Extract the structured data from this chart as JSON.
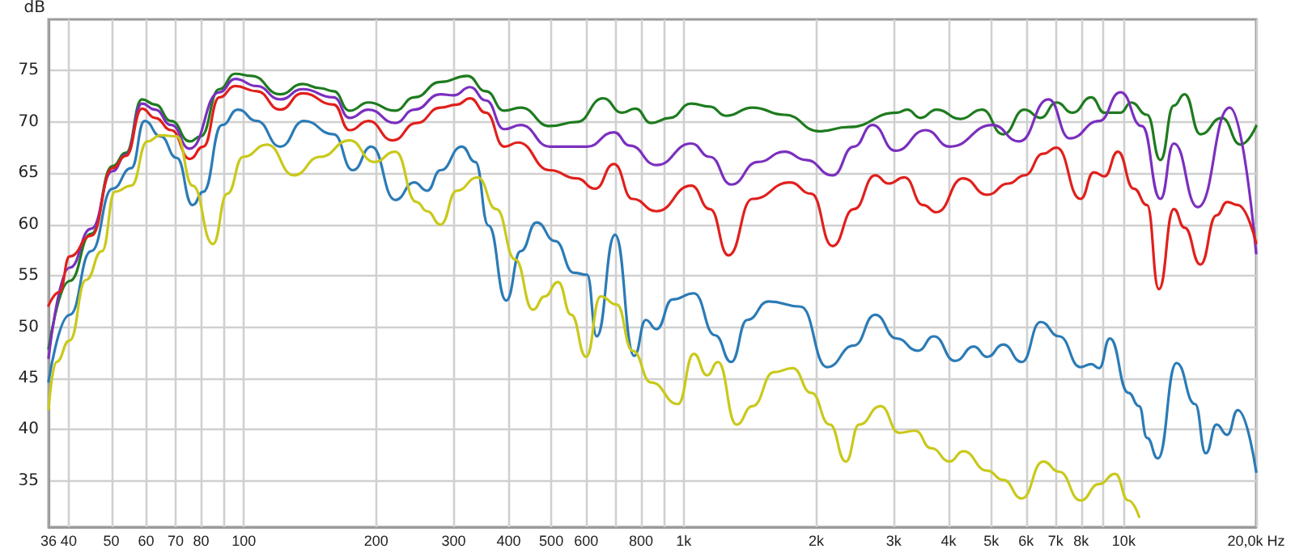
{
  "chart_data": {
    "type": "line",
    "ylabel": "dB",
    "log": "x",
    "grid": true,
    "marker": "none",
    "line_style": "solid",
    "xlim": [
      36,
      20000
    ],
    "ylim": [
      30.5,
      80
    ],
    "xticks": [
      36,
      40,
      50,
      60,
      70,
      80,
      {
        "value": 90,
        "label": null
      },
      100,
      200,
      300,
      400,
      500,
      600,
      {
        "value": 700,
        "label": null
      },
      800,
      {
        "value": 900,
        "label": null
      },
      {
        "value": 1000,
        "label": "1k"
      },
      {
        "value": 2000,
        "label": "2k"
      },
      {
        "value": 3000,
        "label": "3k"
      },
      {
        "value": 4000,
        "label": "4k"
      },
      {
        "value": 5000,
        "label": "5k"
      },
      {
        "value": 6000,
        "label": "6k"
      },
      {
        "value": 7000,
        "label": "7k"
      },
      {
        "value": 8000,
        "label": "8k"
      },
      {
        "value": 9000,
        "label": null
      },
      {
        "value": 10000,
        "label": "10k"
      },
      {
        "value": 20000,
        "label": "20,0k Hz"
      }
    ],
    "yticks": [
      35,
      40,
      45,
      50,
      55,
      60,
      65,
      70,
      75
    ],
    "series": [
      {
        "color": "#1e7b1e",
        "x": [
          36,
          40.2,
          45,
          50.3,
          54,
          58.7,
          62.9,
          68.4,
          75.4,
          79.8,
          88,
          95.6,
          104,
          121,
          136,
          149,
          160,
          174,
          192,
          221,
          244,
          280,
          322,
          355,
          391,
          426,
          496,
          571,
          656,
          724,
          776,
          844,
          930,
          1040,
          1147,
          1247,
          1433,
          1695,
          2032,
          2368,
          3046,
          3220,
          3453,
          3754,
          4256,
          4761,
          5322,
          5951,
          6471,
          7037,
          7648,
          8436,
          9045,
          9834,
          10400,
          11300,
          12120,
          13000,
          13750,
          14940,
          16710,
          18430,
          20000
        ],
        "values": [
          47.9,
          54.5,
          59.1,
          65.7,
          67.0,
          72.2,
          71.7,
          70.1,
          68.1,
          68.6,
          73.2,
          74.7,
          74.5,
          72.7,
          73.7,
          73.3,
          73.0,
          71.1,
          71.9,
          71.1,
          72.4,
          73.9,
          74.5,
          73.0,
          71.1,
          71.4,
          69.6,
          70.0,
          72.3,
          70.9,
          71.3,
          69.9,
          70.4,
          71.8,
          71.5,
          70.6,
          71.4,
          70.7,
          69.1,
          69.5,
          70.9,
          71.2,
          70.4,
          71.2,
          70.3,
          71.2,
          68.8,
          71.2,
          70.4,
          71.9,
          70.9,
          72.4,
          70.9,
          70.9,
          71.9,
          70.7,
          66.3,
          71.6,
          72.7,
          68.8,
          70.4,
          67.8,
          69.6
        ]
      },
      {
        "color": "#7b2fbe",
        "x": [
          36,
          40.2,
          45,
          50.3,
          54,
          58.7,
          62.9,
          68.4,
          75.4,
          88,
          95.6,
          107,
          121,
          136,
          160,
          174,
          192,
          221,
          244,
          280,
          300,
          327,
          355,
          391,
          426,
          496,
          603,
          694,
          754,
          867,
          1040,
          1147,
          1282,
          1474,
          1695,
          1895,
          2179,
          2436,
          2686,
          3029,
          3550,
          4025,
          5033,
          5786,
          6747,
          7542,
          8794,
          9834,
          11000,
          12120,
          13000,
          14740,
          17420,
          20000
        ],
        "values": [
          47.0,
          55.8,
          59.6,
          65.2,
          66.8,
          71.8,
          71.2,
          69.7,
          67.4,
          72.9,
          74.2,
          73.5,
          72.2,
          73.2,
          72.4,
          70.4,
          71.2,
          69.9,
          71.2,
          72.7,
          72.6,
          73.4,
          72.1,
          69.3,
          69.7,
          67.6,
          67.6,
          69.0,
          67.7,
          65.8,
          67.9,
          66.6,
          63.9,
          66.1,
          67.1,
          66.3,
          64.8,
          67.6,
          69.7,
          67.2,
          69.2,
          67.6,
          69.7,
          68.1,
          72.2,
          68.4,
          70.1,
          72.9,
          69.6,
          62.5,
          67.9,
          61.7,
          71.4,
          57.2
        ]
      },
      {
        "color": "#e0201c",
        "x": [
          36,
          38.1,
          40.2,
          45,
          50.3,
          54,
          58.7,
          62.9,
          68.4,
          75.4,
          80.9,
          88,
          95.6,
          107,
          121,
          136,
          160,
          174,
          192,
          218,
          247,
          280,
          305,
          327,
          355,
          391,
          420,
          496,
          571,
          629,
          694,
          765,
          867,
          1040,
          1147,
          1264,
          1433,
          1743,
          1949,
          2179,
          2436,
          2724,
          2921,
          3175,
          3501,
          3754,
          4315,
          4895,
          5472,
          5951,
          6561,
          7037,
          7977,
          8554,
          9045,
          9698,
          10540,
          11300,
          12020,
          13000,
          13750,
          14940,
          16250,
          17190,
          18170,
          20000
        ],
        "values": [
          52.1,
          53.4,
          56.9,
          58.9,
          65.5,
          66.7,
          71.3,
          70.4,
          69.2,
          66.4,
          67.6,
          72.4,
          73.5,
          73.0,
          71.2,
          72.8,
          71.7,
          69.2,
          70.1,
          68.2,
          69.9,
          71.4,
          71.7,
          72.3,
          70.9,
          67.6,
          68.0,
          65.3,
          64.5,
          63.5,
          65.9,
          62.5,
          61.3,
          63.8,
          61.5,
          57.0,
          62.5,
          64.1,
          63.0,
          57.9,
          61.5,
          64.8,
          64.0,
          64.6,
          61.9,
          61.2,
          64.5,
          62.9,
          64.0,
          64.8,
          66.9,
          67.5,
          62.5,
          65.1,
          64.7,
          67.1,
          63.5,
          61.9,
          53.7,
          61.5,
          59.7,
          56.1,
          60.9,
          62.2,
          61.9,
          58.2
        ]
      },
      {
        "color": "#2b7bb6",
        "x": [
          36,
          40.2,
          45,
          50.3,
          55.5,
          59.5,
          64.7,
          70.4,
          76.5,
          80.9,
          89.2,
          97,
          107,
          121,
          137,
          160,
          177,
          195,
          221,
          244,
          261,
          280,
          313,
          336,
          360,
          395,
          426,
          463,
          510,
          563,
          603,
          634,
          698,
          772,
          820,
          867,
          943,
          1054,
          1179,
          1282,
          1394,
          1559,
          1843,
          2119,
          2436,
          2724,
          3046,
          3405,
          3702,
          4139,
          4564,
          4895,
          5322,
          5868,
          6471,
          7135,
          7977,
          8436,
          8794,
          9301,
          10250,
          10840,
          11300,
          11960,
          13180,
          14530,
          15370,
          16250,
          17190,
          18170,
          20000
        ],
        "values": [
          44.7,
          51.2,
          57.4,
          63.5,
          65.5,
          70.1,
          68.6,
          66.5,
          61.9,
          63.2,
          69.7,
          71.2,
          70.1,
          67.6,
          70.1,
          68.8,
          65.3,
          67.6,
          62.4,
          64.1,
          63.3,
          65.3,
          67.6,
          66.1,
          59.9,
          52.6,
          57.4,
          60.2,
          58.4,
          55.3,
          55.1,
          49.1,
          59.0,
          47.2,
          50.7,
          49.8,
          52.7,
          53.3,
          49.2,
          46.6,
          50.7,
          52.5,
          52.0,
          46.1,
          48.2,
          51.2,
          48.9,
          47.7,
          49.1,
          46.7,
          48.1,
          47.1,
          48.3,
          46.6,
          50.5,
          49.1,
          46.1,
          46.4,
          46.0,
          48.9,
          43.6,
          42.3,
          39.2,
          37.2,
          46.5,
          42.5,
          37.7,
          40.5,
          39.5,
          41.9,
          35.9
        ]
      },
      {
        "color": "#c9c91c",
        "x": [
          36,
          37.5,
          40.2,
          43.8,
          47.6,
          51,
          55.5,
          60.4,
          64.7,
          70.4,
          76.5,
          85.1,
          91.7,
          99.7,
          113,
          130,
          149,
          174,
          198,
          221,
          247,
          261,
          280,
          305,
          340,
          375,
          414,
          454,
          483,
          518,
          555,
          600,
          647,
          704,
          765,
          844,
          970,
          1054,
          1130,
          1196,
          1318,
          1433,
          1603,
          1768,
          1949,
          2148,
          2336,
          2505,
          2801,
          3089,
          3358,
          3650,
          4025,
          4315,
          4895,
          5322,
          5868,
          6561,
          7135,
          7977,
          8794,
          9563,
          10250,
          10840
        ],
        "values": [
          42.0,
          46.6,
          48.7,
          54.6,
          57.4,
          63.2,
          63.8,
          68.1,
          68.7,
          68.6,
          63.8,
          58.1,
          63.0,
          66.6,
          67.8,
          64.8,
          66.6,
          68.2,
          66.1,
          67.1,
          62.2,
          61.3,
          60.0,
          63.3,
          64.6,
          61.5,
          56.6,
          51.7,
          53.0,
          54.4,
          51.2,
          47.1,
          53.0,
          52.2,
          47.7,
          44.6,
          42.5,
          47.4,
          45.3,
          46.6,
          40.5,
          42.3,
          45.6,
          46.0,
          43.6,
          40.5,
          36.9,
          40.5,
          42.3,
          39.7,
          39.9,
          38.2,
          36.9,
          37.9,
          36.0,
          35.1,
          33.3,
          36.9,
          35.9,
          33.1,
          34.7,
          35.7,
          33.1,
          31.5
        ]
      }
    ]
  }
}
